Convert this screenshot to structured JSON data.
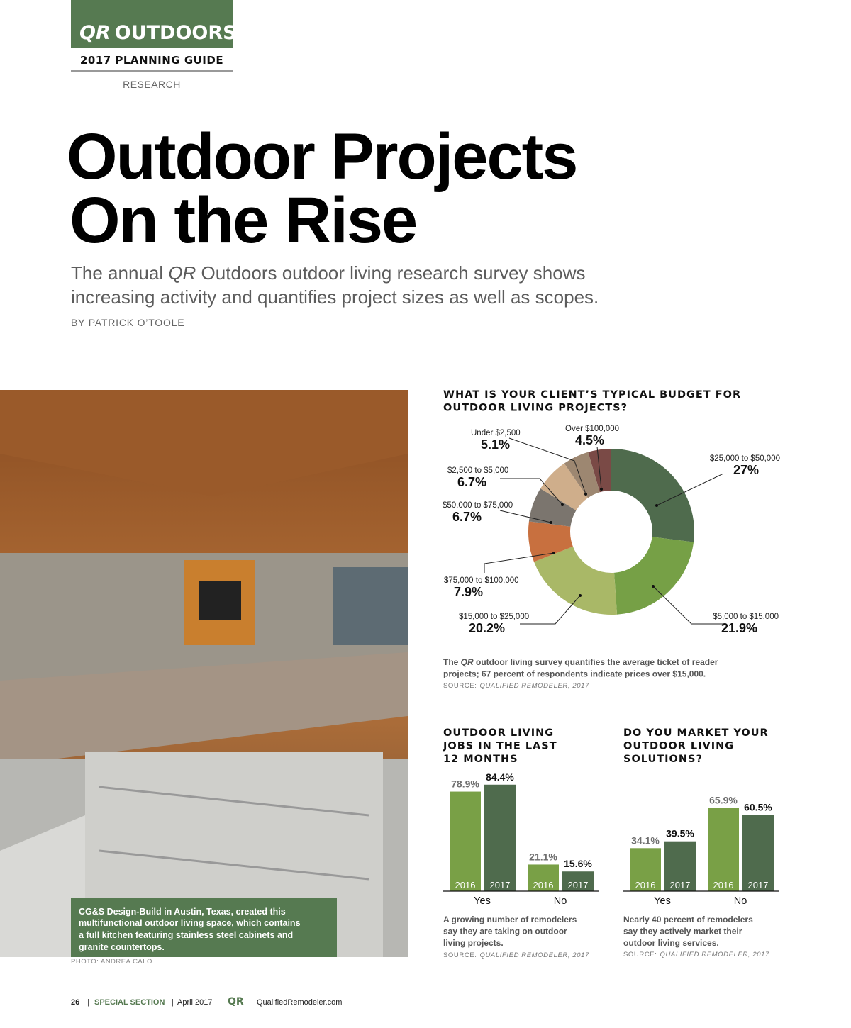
{
  "header": {
    "brand_italic": "QR",
    "brand": "OUTDOORS",
    "guide": "2017 PLANNING GUIDE",
    "section": "RESEARCH"
  },
  "article": {
    "title_lines": [
      "Outdoor Projects",
      "On the Rise"
    ],
    "subtitle_lines": [
      [
        "The annual ",
        "QR",
        " Outdoors outdoor living research survey shows"
      ],
      [
        "increasing activity and quantifies project sizes as well as scopes."
      ]
    ],
    "byline": "BY PATRICK O’TOOLE"
  },
  "photo": {
    "caption_lines": [
      "CG&S Design-Build in Austin, Texas, created this",
      "multifunctional outdoor living space, which contains",
      "a full kitchen featuring stainless steel cabinets and",
      "granite countertops."
    ],
    "credit": "PHOTO: ANDREA CALO"
  },
  "chart_data": [
    {
      "type": "pie",
      "donut": true,
      "title_lines": [
        "WHAT IS YOUR CLIENT’S TYPICAL BUDGET FOR",
        "OUTDOOR LIVING PROJECTS?"
      ],
      "categories": [
        "$25,000 to $50,000",
        "$5,000 to $15,000",
        "$15,000 to $25,000",
        "$75,000 to $100,000",
        "$50,000 to $75,000",
        "$2,500 to $5,000",
        "Under $2,500",
        "Over $100,000"
      ],
      "values": [
        27,
        21.9,
        20.2,
        7.9,
        6.7,
        6.7,
        5.1,
        4.5
      ],
      "value_labels": [
        "27%",
        "21.9%",
        "20.2%",
        "7.9%",
        "6.7%",
        "6.7%",
        "5.1%",
        "4.5%"
      ],
      "colors": [
        "#4f6b4d",
        "#76a046",
        "#a9b867",
        "#c8703f",
        "#7b756e",
        "#cfae8b",
        "#9d8771",
        "#7a4a46"
      ],
      "caption_lines": [
        [
          "The ",
          "QR",
          " outdoor living survey quantifies the average ticket of reader"
        ],
        [
          "projects; 67 percent of respondents indicate prices over $15,000."
        ]
      ],
      "source": {
        "label": "SOURCE:",
        "name": "QUALIFIED REMODELER, 2017"
      }
    },
    {
      "type": "bar",
      "title_lines": [
        "OUTDOOR LIVING",
        "JOBS IN THE LAST",
        "12 MONTHS"
      ],
      "categories": [
        "Yes",
        "No"
      ],
      "series": [
        {
          "name": "2016",
          "color": "#79a046",
          "values": [
            78.9,
            21.1
          ],
          "value_labels": [
            "78.9%",
            "21.1%"
          ]
        },
        {
          "name": "2017",
          "color": "#4f6b4d",
          "values": [
            84.4,
            15.6
          ],
          "value_labels": [
            "84.4%",
            "15.6%"
          ]
        }
      ],
      "caption_lines": [
        "A growing number of remodelers",
        "say they are taking on outdoor",
        "living projects."
      ],
      "source": {
        "label": "SOURCE:",
        "name": "QUALIFIED REMODELER, 2017"
      }
    },
    {
      "type": "bar",
      "title_lines": [
        "DO YOU MARKET YOUR",
        "OUTDOOR LIVING",
        "SOLUTIONS?"
      ],
      "categories": [
        "Yes",
        "No"
      ],
      "series": [
        {
          "name": "2016",
          "color": "#79a046",
          "values": [
            34.1,
            65.9
          ],
          "value_labels": [
            "34.1%",
            "65.9%"
          ]
        },
        {
          "name": "2017",
          "color": "#4f6b4d",
          "values": [
            39.5,
            60.5
          ],
          "value_labels": [
            "39.5%",
            "60.5%"
          ]
        }
      ],
      "caption_lines": [
        "Nearly 40 percent of remodelers",
        "say they actively market their",
        "outdoor living services."
      ],
      "source": {
        "label": "SOURCE:",
        "name": "QUALIFIED REMODELER, 2017"
      }
    }
  ],
  "footer": {
    "page": "26",
    "separator": "|",
    "section": "SPECIAL SECTION",
    "date": "April 2017",
    "logo": "QR",
    "url": "QualifiedRemodeler.com"
  }
}
